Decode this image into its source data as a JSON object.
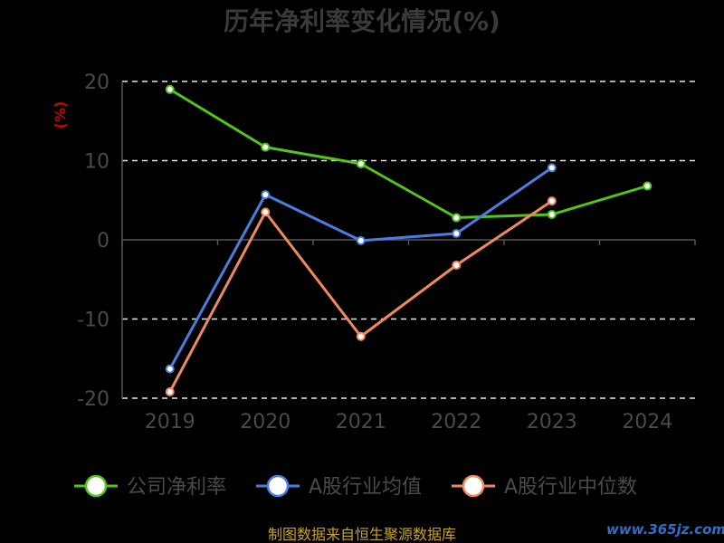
{
  "chart_data": {
    "type": "line",
    "title": "历年净利率变化情况(%)",
    "ylabel": "(%)",
    "categories": [
      "2019",
      "2020",
      "2021",
      "2022",
      "2023",
      "2024"
    ],
    "ylim": [
      -20,
      20
    ],
    "yticks": [
      "20",
      "10",
      "0",
      "-10",
      "-20"
    ],
    "grid": true,
    "legend_position": "bottom",
    "series": [
      {
        "name": "公司净利率",
        "color": "#52c41a",
        "values": [
          19.0,
          11.7,
          9.6,
          2.8,
          3.2,
          6.8
        ]
      },
      {
        "name": "A股行业均值",
        "color": "#4a7ee0",
        "values": [
          -16.3,
          5.7,
          -0.1,
          0.8,
          9.1,
          null
        ]
      },
      {
        "name": "A股行业中位数",
        "color": "#f08a5d",
        "values": [
          -19.2,
          3.5,
          -12.2,
          -3.2,
          4.9,
          null
        ]
      }
    ]
  },
  "source": "制图数据来自恒生聚源数据库",
  "watermark": "www.365jz.com"
}
